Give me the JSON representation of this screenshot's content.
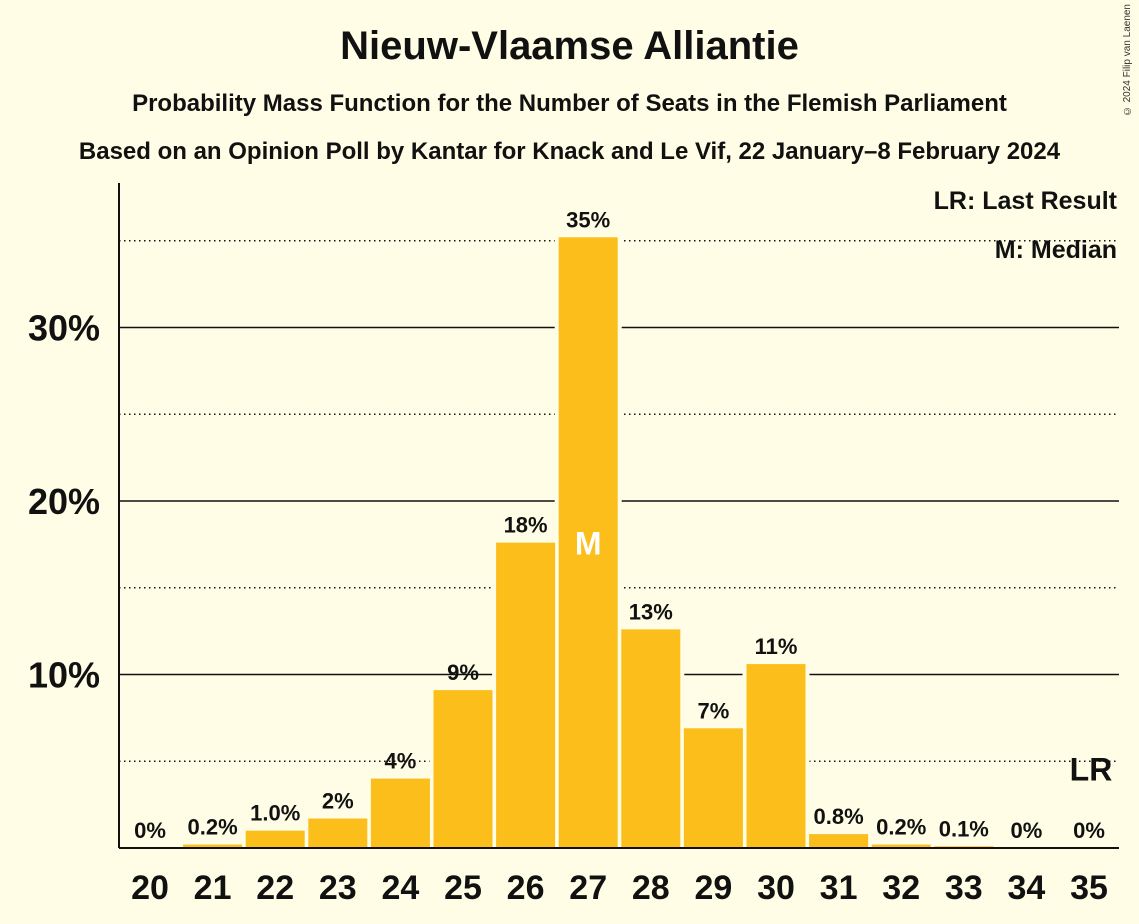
{
  "title": "Nieuw-Vlaamse Alliantie",
  "subtitle": "Probability Mass Function for the Number of Seats in the Flemish Parliament",
  "subtitle2": "Based on an Opinion Poll by Kantar for Knack and Le Vif, 22 January–8 February 2024",
  "copyright": "© 2024 Filip van Laenen",
  "legend": {
    "last_result": "LR: Last Result",
    "median": "M: Median"
  },
  "colors": {
    "bar": "#fbbe1b",
    "background": "#fffde5"
  },
  "chart_data": {
    "type": "bar",
    "categories": [
      "20",
      "21",
      "22",
      "23",
      "24",
      "25",
      "26",
      "27",
      "28",
      "29",
      "30",
      "31",
      "32",
      "33",
      "34",
      "35"
    ],
    "values": [
      0,
      0.2,
      1.0,
      1.7,
      4.0,
      9.1,
      17.6,
      35.2,
      12.6,
      6.9,
      10.6,
      0.8,
      0.2,
      0.1,
      0,
      0
    ],
    "data_labels": [
      "0%",
      "0.2%",
      "1.0%",
      "2%",
      "4%",
      "9%",
      "18%",
      "35%",
      "13%",
      "7%",
      "11%",
      "0.8%",
      "0.2%",
      "0.1%",
      "0%",
      "0%"
    ],
    "y_ticks": [
      10,
      20,
      30
    ],
    "y_tick_labels": [
      "10%",
      "20%",
      "30%"
    ],
    "y_minor_ticks": [
      5,
      15,
      25,
      35
    ],
    "ylim": [
      0,
      38.5
    ],
    "median_category": "27",
    "median_marker": "M",
    "last_result_category": "35",
    "last_result_marker": "LR",
    "grid": true,
    "legend_position": "top-right"
  }
}
